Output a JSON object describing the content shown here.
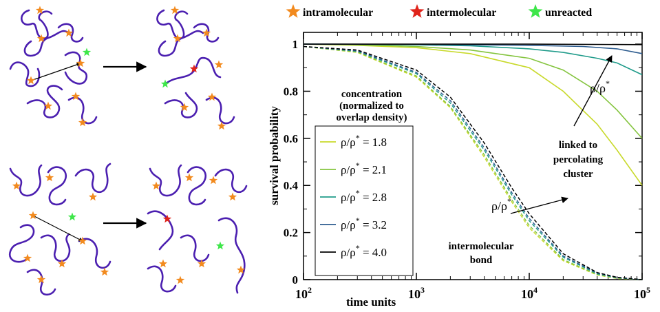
{
  "legend_top": {
    "items": [
      {
        "label": "intramolecular",
        "color": "#f28a1e"
      },
      {
        "label": "intermolecular",
        "color": "#e0241b"
      },
      {
        "label": "unreacted",
        "color": "#3ee64a"
      }
    ]
  },
  "schematic": {
    "chain_color": "#4b1fb0",
    "arrow_color": "#000000",
    "icons": [
      "star-icon",
      "arrow-right-icon"
    ]
  },
  "annotations": {
    "concentration_title_line1": "concentration",
    "concentration_title_line2": "(normalized to",
    "concentration_title_line3": "overlap density)",
    "rho_symbol": "ρ/ρ",
    "rho_sup": "*",
    "linked_line1": "linked to",
    "linked_line2": "percolating",
    "linked_line3": "cluster",
    "intermolecular_line1": "intermolecular",
    "intermolecular_line2": "bond"
  },
  "chart_data": {
    "type": "line",
    "xlabel": "time units",
    "ylabel": "survival probability",
    "xscale": "log",
    "xlim": [
      100,
      100000
    ],
    "ylim": [
      0,
      1.05
    ],
    "x_ticks": [
      {
        "base": "10",
        "exp": "2"
      },
      {
        "base": "10",
        "exp": "3"
      },
      {
        "base": "10",
        "exp": "4"
      },
      {
        "base": "10",
        "exp": "5"
      }
    ],
    "y_ticks": [
      "0",
      "0.2",
      "0.4",
      "0.6",
      "0.8",
      "1"
    ],
    "x_tick_values": [
      100,
      1000,
      10000,
      100000
    ],
    "y_tick_values": [
      0,
      0.2,
      0.4,
      0.6,
      0.8,
      1.0
    ],
    "legend_entries": [
      {
        "prefix": "ρ/ρ",
        "sup": "*",
        "value": " = 1.8",
        "color": "#c8d92a"
      },
      {
        "prefix": "ρ/ρ",
        "sup": "*",
        "value": " = 2.1",
        "color": "#84c43e"
      },
      {
        "prefix": "ρ/ρ",
        "sup": "*",
        "value": " = 2.8",
        "color": "#1f9b8a"
      },
      {
        "prefix": "ρ/ρ",
        "sup": "*",
        "value": " = 3.2",
        "color": "#2d5c8f"
      },
      {
        "prefix": "ρ/ρ",
        "sup": "*",
        "value": " = 4.0",
        "color": "#000000"
      }
    ],
    "series_solid": [
      {
        "concentration": 1.8,
        "color": "#c8d92a",
        "x": [
          100,
          300,
          1000,
          3000,
          10000,
          20000,
          40000,
          60000,
          100000
        ],
        "y": [
          1.0,
          0.995,
          0.985,
          0.96,
          0.9,
          0.8,
          0.66,
          0.55,
          0.4
        ]
      },
      {
        "concentration": 2.1,
        "color": "#84c43e",
        "x": [
          100,
          300,
          1000,
          3000,
          10000,
          20000,
          40000,
          60000,
          100000
        ],
        "y": [
          1.0,
          0.998,
          0.99,
          0.975,
          0.94,
          0.89,
          0.8,
          0.72,
          0.6
        ]
      },
      {
        "concentration": 2.8,
        "color": "#1f9b8a",
        "x": [
          100,
          300,
          1000,
          3000,
          10000,
          20000,
          40000,
          60000,
          100000
        ],
        "y": [
          1.0,
          0.999,
          0.997,
          0.993,
          0.98,
          0.965,
          0.94,
          0.92,
          0.87
        ]
      },
      {
        "concentration": 3.2,
        "color": "#2d5c8f",
        "x": [
          100,
          1000,
          10000,
          30000,
          60000,
          100000
        ],
        "y": [
          1.0,
          0.999,
          0.995,
          0.99,
          0.98,
          0.96
        ]
      },
      {
        "concentration": 4.0,
        "color": "#000000",
        "x": [
          100,
          1000,
          10000,
          100000
        ],
        "y": [
          1.0,
          1.0,
          1.0,
          0.998
        ]
      }
    ],
    "series_dashed": [
      {
        "concentration": 1.8,
        "color": "#c8d92a",
        "x": [
          100,
          300,
          1000,
          2000,
          4000,
          7000,
          10000,
          20000,
          40000,
          60000,
          100000
        ],
        "y": [
          0.99,
          0.965,
          0.86,
          0.73,
          0.52,
          0.33,
          0.22,
          0.08,
          0.02,
          0.005,
          0.0
        ]
      },
      {
        "concentration": 2.1,
        "color": "#84c43e",
        "x": [
          100,
          300,
          1000,
          2000,
          4000,
          7000,
          10000,
          20000,
          40000,
          60000,
          100000
        ],
        "y": [
          0.99,
          0.967,
          0.865,
          0.735,
          0.53,
          0.34,
          0.23,
          0.085,
          0.022,
          0.006,
          0.0
        ]
      },
      {
        "concentration": 2.8,
        "color": "#1f9b8a",
        "x": [
          100,
          300,
          1000,
          2000,
          4000,
          7000,
          10000,
          20000,
          40000,
          60000,
          100000
        ],
        "y": [
          0.99,
          0.97,
          0.875,
          0.75,
          0.55,
          0.36,
          0.25,
          0.095,
          0.025,
          0.008,
          0.0
        ]
      },
      {
        "concentration": 3.2,
        "color": "#2d5c8f",
        "x": [
          100,
          300,
          1000,
          2000,
          4000,
          7000,
          10000,
          20000,
          40000,
          60000,
          100000
        ],
        "y": [
          0.99,
          0.972,
          0.88,
          0.76,
          0.56,
          0.37,
          0.26,
          0.1,
          0.028,
          0.009,
          0.0
        ]
      },
      {
        "concentration": 4.0,
        "color": "#000000",
        "x": [
          100,
          300,
          1000,
          2000,
          4000,
          7000,
          10000,
          20000,
          40000,
          60000,
          100000
        ],
        "y": [
          0.99,
          0.975,
          0.89,
          0.775,
          0.58,
          0.39,
          0.28,
          0.11,
          0.03,
          0.01,
          0.0
        ]
      }
    ]
  }
}
